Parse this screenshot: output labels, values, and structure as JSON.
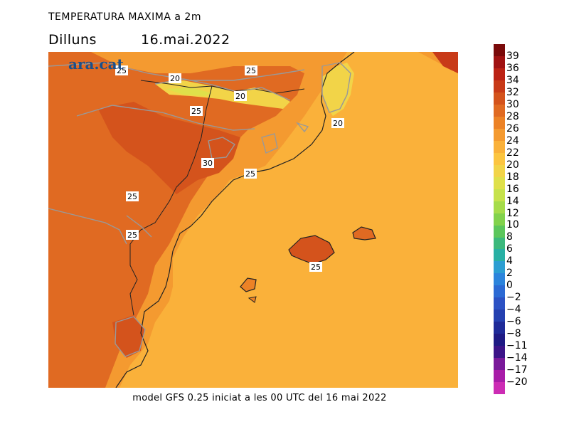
{
  "header": {
    "title": "TEMPERATURA MAXIMA a 2m",
    "day": "Dilluns",
    "date": "16.mai.2022"
  },
  "logo": "ara.cat",
  "footer": "model GFS 0.25 iniciat a les 00 UTC del 16 mai 2022",
  "map": {
    "contour_labels": [
      "25",
      "20",
      "25",
      "20",
      "25",
      "20",
      "30",
      "25",
      "25",
      "25",
      "25"
    ]
  },
  "colorbar": {
    "labels": [
      "39",
      "36",
      "34",
      "32",
      "30",
      "28",
      "26",
      "24",
      "22",
      "20",
      "18",
      "16",
      "14",
      "12",
      "10",
      "8",
      "6",
      "4",
      "2",
      "0",
      "−2",
      "−4",
      "−6",
      "−8",
      "−11",
      "−14",
      "−17",
      "−20"
    ],
    "colors": [
      "#7a0a0a",
      "#a01212",
      "#bb2214",
      "#c83a18",
      "#d4531c",
      "#e06a22",
      "#ec8226",
      "#f49a30",
      "#fab13a",
      "#fcc540",
      "#f2d448",
      "#dfe04a",
      "#c6e24c",
      "#a6dc4a",
      "#82d24c",
      "#5cc65c",
      "#3cb97c",
      "#28b0a4",
      "#2c9ed2",
      "#2c84dc",
      "#2c6ad4",
      "#2c52c4",
      "#2440b0",
      "#1e2a98",
      "#1e1a84",
      "#3c1488",
      "#7a1a9a",
      "#a81ca8",
      "#cc2cb4"
    ]
  }
}
